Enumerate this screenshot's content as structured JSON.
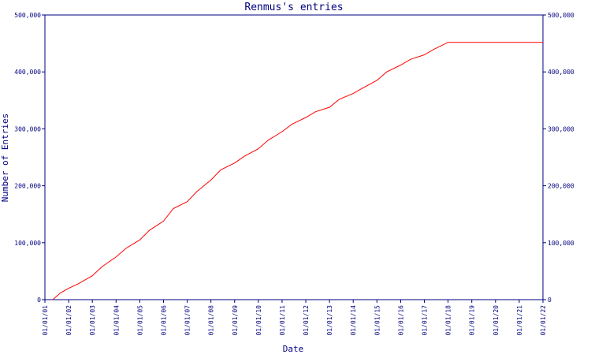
{
  "chart_data": {
    "type": "line",
    "title": "Renmus's entries",
    "xlabel": "Date",
    "ylabel": "Number of Entries",
    "x_ticks": [
      "01/01/01",
      "01/01/02",
      "01/01/03",
      "01/01/04",
      "01/01/05",
      "01/01/06",
      "01/01/07",
      "01/01/08",
      "01/01/09",
      "01/01/10",
      "01/01/11",
      "01/01/12",
      "01/01/13",
      "01/01/14",
      "01/01/15",
      "01/01/16",
      "01/01/17",
      "01/01/18",
      "01/01/19",
      "01/01/20",
      "01/01/21",
      "01/01/22"
    ],
    "y_ticks_left": [
      "0",
      "100,000",
      "200,000",
      "300,000",
      "400,000",
      "500,000"
    ],
    "y_ticks_right": [
      "0",
      "100,000",
      "200,000",
      "300,000",
      "400,000",
      "500,000"
    ],
    "xlim": [
      "2001-01-01",
      "2022-01-01"
    ],
    "ylim": [
      0,
      500000
    ],
    "grid": false,
    "colors": {
      "axes": "#000080",
      "text": "#000080",
      "line": "#ff0000",
      "background": "#ffffff"
    },
    "series": [
      {
        "points": [
          [
            "2001-05-01",
            0
          ],
          [
            "2001-09-01",
            12000
          ],
          [
            "2002-01-01",
            20000
          ],
          [
            "2002-06-01",
            28000
          ],
          [
            "2003-01-01",
            42000
          ],
          [
            "2003-06-01",
            58000
          ],
          [
            "2004-01-01",
            75000
          ],
          [
            "2004-06-01",
            90000
          ],
          [
            "2005-01-01",
            105000
          ],
          [
            "2005-06-01",
            122000
          ],
          [
            "2006-01-01",
            138000
          ],
          [
            "2006-06-01",
            160000
          ],
          [
            "2007-01-01",
            172000
          ],
          [
            "2007-06-01",
            190000
          ],
          [
            "2008-01-01",
            210000
          ],
          [
            "2008-06-01",
            228000
          ],
          [
            "2009-01-01",
            240000
          ],
          [
            "2009-06-01",
            252000
          ],
          [
            "2010-01-01",
            265000
          ],
          [
            "2010-06-01",
            280000
          ],
          [
            "2011-01-01",
            295000
          ],
          [
            "2011-06-01",
            308000
          ],
          [
            "2012-01-01",
            320000
          ],
          [
            "2012-06-01",
            330000
          ],
          [
            "2013-01-01",
            338000
          ],
          [
            "2013-06-01",
            352000
          ],
          [
            "2014-01-01",
            362000
          ],
          [
            "2014-06-01",
            372000
          ],
          [
            "2015-01-01",
            385000
          ],
          [
            "2015-06-01",
            400000
          ],
          [
            "2016-01-01",
            412000
          ],
          [
            "2016-06-01",
            422000
          ],
          [
            "2017-01-01",
            430000
          ],
          [
            "2017-06-01",
            440000
          ],
          [
            "2018-01-01",
            452000
          ],
          [
            "2022-01-01",
            452000
          ]
        ]
      }
    ]
  }
}
